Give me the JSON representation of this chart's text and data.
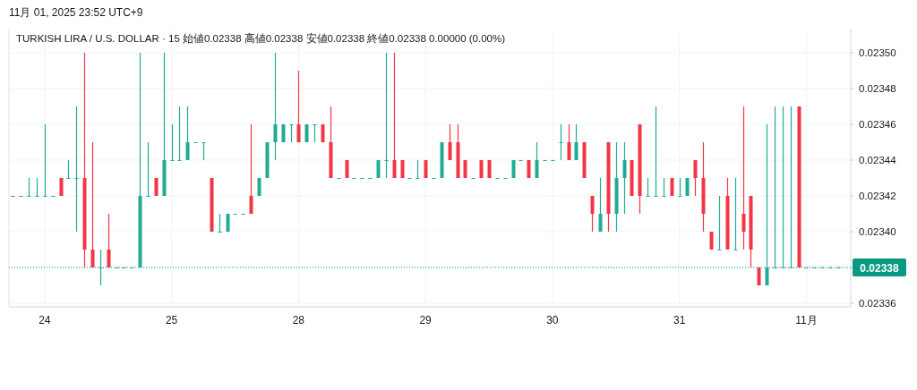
{
  "chart_data": {
    "type": "candlestick",
    "title": "11月 01, 2025 23:52 UTC+9",
    "subtitle": "TURKISH LIRA / U.S. DOLLAR · 15  始値0.02338  高値0.02338  安値0.02338  終値0.02338  0.00000 (0.00%)",
    "categories": [
      null,
      null,
      null,
      null,
      "24",
      null,
      null,
      null,
      null,
      null,
      null,
      null,
      null,
      null,
      null,
      null,
      null,
      null,
      null,
      null,
      "25",
      null,
      null,
      null,
      null,
      null,
      null,
      null,
      null,
      null,
      null,
      null,
      null,
      null,
      null,
      null,
      "28",
      null,
      null,
      null,
      null,
      null,
      null,
      null,
      null,
      null,
      null,
      null,
      null,
      null,
      null,
      null,
      "29",
      null,
      null,
      null,
      null,
      null,
      null,
      null,
      null,
      null,
      null,
      null,
      null,
      null,
      null,
      null,
      "30",
      null,
      null,
      null,
      null,
      null,
      null,
      null,
      null,
      null,
      null,
      null,
      null,
      null,
      null,
      null,
      "31",
      null,
      null,
      null,
      null,
      null,
      null,
      null,
      null,
      null,
      null,
      null,
      null,
      null,
      null,
      null,
      "11月",
      null,
      null,
      null,
      null
    ],
    "ohlc": [
      [
        0.02342,
        0.02342,
        0.02342,
        0.02342
      ],
      [
        0.02342,
        0.02342,
        0.02342,
        0.02342
      ],
      [
        0.02342,
        0.02343,
        0.02342,
        0.02342
      ],
      [
        0.02342,
        0.02343,
        0.02342,
        0.02342
      ],
      [
        0.02342,
        0.02346,
        0.02342,
        0.02342
      ],
      [
        0.02342,
        0.02342,
        0.02342,
        0.02342
      ],
      [
        0.02343,
        0.02343,
        0.02342,
        0.02342
      ],
      [
        0.02343,
        0.02344,
        0.02343,
        0.02343
      ],
      [
        0.02343,
        0.02347,
        0.0234,
        0.02343
      ],
      [
        0.02343,
        0.0235,
        0.02338,
        0.02339
      ],
      [
        0.02339,
        0.02345,
        0.02338,
        0.02338
      ],
      [
        0.02338,
        0.02339,
        0.02337,
        0.02338
      ],
      [
        0.02339,
        0.02341,
        0.02338,
        0.02338
      ],
      [
        0.02338,
        0.02338,
        0.02338,
        0.02338
      ],
      [
        0.02338,
        0.02338,
        0.02338,
        0.02338
      ],
      [
        0.02338,
        0.02338,
        0.02338,
        0.02338
      ],
      [
        0.02338,
        0.0235,
        0.02338,
        0.02342
      ],
      [
        0.02342,
        0.02345,
        0.02342,
        0.02342
      ],
      [
        0.02343,
        0.02343,
        0.02342,
        0.02342
      ],
      [
        0.02342,
        0.0235,
        0.02342,
        0.02344
      ],
      [
        0.02344,
        0.02346,
        0.02344,
        0.02344
      ],
      [
        0.02344,
        0.02347,
        0.02344,
        0.02344
      ],
      [
        0.02344,
        0.02347,
        0.02344,
        0.02345
      ],
      [
        0.02345,
        0.02345,
        0.02345,
        0.02345
      ],
      [
        0.02345,
        0.02345,
        0.02344,
        0.02345
      ],
      [
        0.02343,
        0.02343,
        0.0234,
        0.0234
      ],
      [
        0.0234,
        0.02341,
        0.0234,
        0.0234
      ],
      [
        0.0234,
        0.02341,
        0.0234,
        0.02341
      ],
      [
        0.02341,
        0.02341,
        0.02341,
        0.02341
      ],
      [
        0.02341,
        0.02341,
        0.02341,
        0.02341
      ],
      [
        0.02342,
        0.02346,
        0.02341,
        0.02341
      ],
      [
        0.02342,
        0.02343,
        0.02342,
        0.02343
      ],
      [
        0.02343,
        0.02345,
        0.02343,
        0.02345
      ],
      [
        0.02345,
        0.0235,
        0.02344,
        0.02346
      ],
      [
        0.02345,
        0.02346,
        0.02345,
        0.02346
      ],
      [
        0.02346,
        0.02346,
        0.02345,
        0.02346
      ],
      [
        0.02346,
        0.02349,
        0.02345,
        0.02345
      ],
      [
        0.02345,
        0.02346,
        0.02345,
        0.02346
      ],
      [
        0.02346,
        0.02346,
        0.02345,
        0.02346
      ],
      [
        0.02346,
        0.02346,
        0.02345,
        0.02345
      ],
      [
        0.02345,
        0.02347,
        0.02343,
        0.02343
      ],
      [
        0.02343,
        0.02343,
        0.02343,
        0.02343
      ],
      [
        0.02344,
        0.02344,
        0.02343,
        0.02343
      ],
      [
        0.02343,
        0.02343,
        0.02343,
        0.02343
      ],
      [
        0.02343,
        0.02343,
        0.02343,
        0.02343
      ],
      [
        0.02343,
        0.02343,
        0.02343,
        0.02343
      ],
      [
        0.02343,
        0.02344,
        0.02343,
        0.02344
      ],
      [
        0.02344,
        0.0235,
        0.02343,
        0.02344
      ],
      [
        0.02344,
        0.0235,
        0.02343,
        0.02343
      ],
      [
        0.02344,
        0.02344,
        0.02343,
        0.02343
      ],
      [
        0.02343,
        0.02343,
        0.02343,
        0.02343
      ],
      [
        0.02343,
        0.02344,
        0.02343,
        0.02343
      ],
      [
        0.02344,
        0.02344,
        0.02343,
        0.02343
      ],
      [
        0.02343,
        0.02343,
        0.02343,
        0.02343
      ],
      [
        0.02343,
        0.02345,
        0.02343,
        0.02345
      ],
      [
        0.02345,
        0.02346,
        0.02344,
        0.02344
      ],
      [
        0.02345,
        0.02346,
        0.02343,
        0.02343
      ],
      [
        0.02344,
        0.02344,
        0.02343,
        0.02343
      ],
      [
        0.02343,
        0.02343,
        0.02343,
        0.02343
      ],
      [
        0.02344,
        0.02344,
        0.02343,
        0.02343
      ],
      [
        0.02344,
        0.02344,
        0.02343,
        0.02343
      ],
      [
        0.02343,
        0.02343,
        0.02343,
        0.02343
      ],
      [
        0.02343,
        0.02343,
        0.02343,
        0.02343
      ],
      [
        0.02343,
        0.02344,
        0.02343,
        0.02344
      ],
      [
        0.02344,
        0.02344,
        0.02344,
        0.02344
      ],
      [
        0.02344,
        0.02344,
        0.02343,
        0.02343
      ],
      [
        0.02343,
        0.02345,
        0.02343,
        0.02344
      ],
      [
        0.02344,
        0.02344,
        0.02344,
        0.02344
      ],
      [
        0.02344,
        0.02344,
        0.02344,
        0.02344
      ],
      [
        0.02345,
        0.02346,
        0.02344,
        0.02345
      ],
      [
        0.02345,
        0.02346,
        0.02344,
        0.02344
      ],
      [
        0.02344,
        0.02346,
        0.02344,
        0.02345
      ],
      [
        0.02345,
        0.02345,
        0.02343,
        0.02343
      ],
      [
        0.02342,
        0.02342,
        0.0234,
        0.02341
      ],
      [
        0.0234,
        0.02343,
        0.0234,
        0.02341
      ],
      [
        0.02345,
        0.02345,
        0.0234,
        0.02341
      ],
      [
        0.02341,
        0.02345,
        0.0234,
        0.02343
      ],
      [
        0.02343,
        0.02345,
        0.02341,
        0.02344
      ],
      [
        0.02344,
        0.02344,
        0.02342,
        0.02342
      ],
      [
        0.02346,
        0.02346,
        0.02341,
        0.02342
      ],
      [
        0.02342,
        0.02343,
        0.02342,
        0.02342
      ],
      [
        0.02342,
        0.02347,
        0.02342,
        0.02342
      ],
      [
        0.02342,
        0.02343,
        0.02342,
        0.02342
      ],
      [
        0.02343,
        0.02343,
        0.02342,
        0.02342
      ],
      [
        0.02342,
        0.02343,
        0.02342,
        0.02342
      ],
      [
        0.02342,
        0.02343,
        0.02342,
        0.02343
      ],
      [
        0.02344,
        0.02344,
        0.02342,
        0.02343
      ],
      [
        0.02343,
        0.02345,
        0.0234,
        0.02341
      ],
      [
        0.0234,
        0.0234,
        0.02339,
        0.02339
      ],
      [
        0.02339,
        0.02342,
        0.02339,
        0.02339
      ],
      [
        0.02342,
        0.02343,
        0.02339,
        0.02339
      ],
      [
        0.02339,
        0.02343,
        0.02339,
        0.02339
      ],
      [
        0.02341,
        0.02347,
        0.02339,
        0.0234
      ],
      [
        0.02342,
        0.02342,
        0.02338,
        0.02339
      ],
      [
        0.02338,
        0.02338,
        0.02337,
        0.02337
      ],
      [
        0.02337,
        0.02346,
        0.02337,
        0.02338
      ],
      [
        0.02338,
        0.02347,
        0.02338,
        0.02338
      ],
      [
        0.02338,
        0.02347,
        0.02338,
        0.02338
      ],
      [
        0.02338,
        0.02347,
        0.02338,
        0.02338
      ],
      [
        0.02347,
        0.02347,
        0.02338,
        0.02338
      ],
      [
        0.02338,
        0.02338,
        0.02338,
        0.02338
      ],
      [
        0.02338,
        0.02338,
        0.02338,
        0.02338
      ],
      [
        0.02338,
        0.02338,
        0.02338,
        0.02338
      ],
      [
        0.02338,
        0.02338,
        0.02338,
        0.02338
      ],
      [
        0.02338,
        0.02338,
        0.02338,
        0.02338
      ]
    ],
    "colors": [
      "#22ab94",
      "#22ab94",
      "#22ab94",
      "#22ab94",
      "#22ab94",
      "#22ab94",
      "#f23645",
      "#22ab94",
      "#22ab94",
      "#f23645",
      "#f23645",
      "#22ab94",
      "#f23645",
      "#22ab94",
      "#22ab94",
      "#22ab94",
      "#22ab94",
      "#22ab94",
      "#f23645",
      "#22ab94",
      "#22ab94",
      "#22ab94",
      "#22ab94",
      "#22ab94",
      "#22ab94",
      "#f23645",
      "#22ab94",
      "#22ab94",
      "#22ab94",
      "#22ab94",
      "#f23645",
      "#22ab94",
      "#22ab94",
      "#22ab94",
      "#22ab94",
      "#22ab94",
      "#f23645",
      "#22ab94",
      "#22ab94",
      "#f23645",
      "#f23645",
      "#22ab94",
      "#f23645",
      "#22ab94",
      "#22ab94",
      "#22ab94",
      "#22ab94",
      "#22ab94",
      "#f23645",
      "#f23645",
      "#22ab94",
      "#22ab94",
      "#f23645",
      "#22ab94",
      "#22ab94",
      "#f23645",
      "#f23645",
      "#f23645",
      "#22ab94",
      "#f23645",
      "#f23645",
      "#22ab94",
      "#22ab94",
      "#22ab94",
      "#22ab94",
      "#f23645",
      "#22ab94",
      "#22ab94",
      "#22ab94",
      "#22ab94",
      "#f23645",
      "#22ab94",
      "#f23645",
      "#f23645",
      "#22ab94",
      "#f23645",
      "#22ab94",
      "#22ab94",
      "#f23645",
      "#f23645",
      "#22ab94",
      "#22ab94",
      "#22ab94",
      "#f23645",
      "#22ab94",
      "#22ab94",
      "#f23645",
      "#f23645",
      "#f23645",
      "#22ab94",
      "#f23645",
      "#22ab94",
      "#f23645",
      "#f23645",
      "#f23645",
      "#22ab94",
      "#22ab94",
      "#22ab94",
      "#22ab94",
      "#f23645",
      "#22ab94",
      "#22ab94",
      "#22ab94",
      "#22ab94",
      "#22ab94"
    ],
    "ylim": [
      0.023358,
      0.023513
    ],
    "yticks": [
      0.02336,
      0.02338,
      {
        "value": 0.0234,
        "label": "0.02340"
      },
      0.02342,
      0.02344,
      0.02346,
      0.02348,
      {
        "value": 0.0235,
        "label": "0.02350"
      }
    ],
    "grid": true,
    "ref_lines": [
      {
        "axis": "y",
        "value": 0.02338,
        "label": "0.02338",
        "color": "#089981",
        "line_style": "dotted"
      }
    ]
  }
}
